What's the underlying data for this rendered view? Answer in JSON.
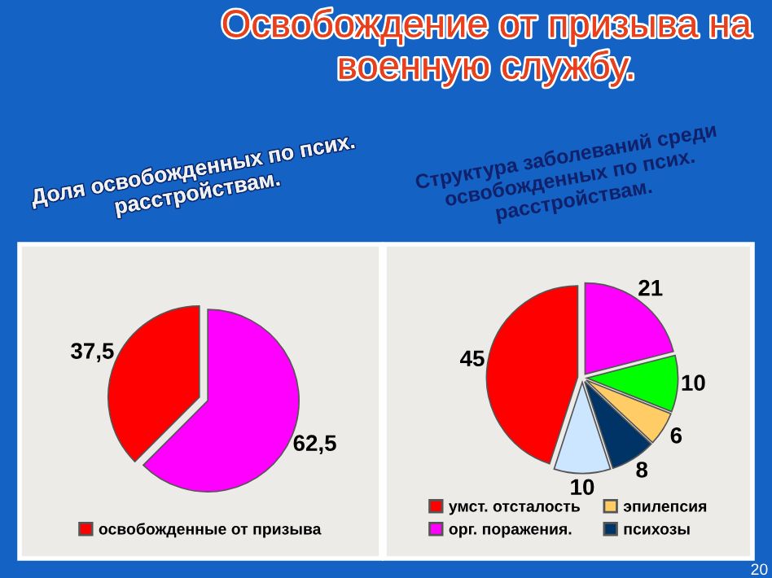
{
  "chart_data": [
    {
      "type": "pie",
      "title": "Освобождение от призыва на военную службу.",
      "subtitle": "Доля освобожденных по псих. расстройствам.",
      "categories": [
        "освобожденные от призыва",
        null
      ],
      "values": [
        37.5,
        62.5
      ],
      "value_labels": [
        "37,5",
        "62,5"
      ],
      "colors": [
        "#ff0000",
        "#ff00ff"
      ],
      "legend": "bottom"
    },
    {
      "type": "pie",
      "title": "Структура заболеваний среди освобожденных по псих. расстройствам.",
      "categories": [
        "умст. отсталость",
        "орг. поражения.",
        null,
        "эпилепсия",
        "психозы",
        null
      ],
      "values": [
        45,
        21,
        10,
        6,
        8,
        10
      ],
      "data_labels": true,
      "colors": [
        "#ff0000",
        "#ff00ff",
        "#00ff00",
        "#ffcc66",
        "#003366",
        "#cce6ff"
      ],
      "legend": "bottom",
      "annotations": [
        "20"
      ]
    }
  ]
}
